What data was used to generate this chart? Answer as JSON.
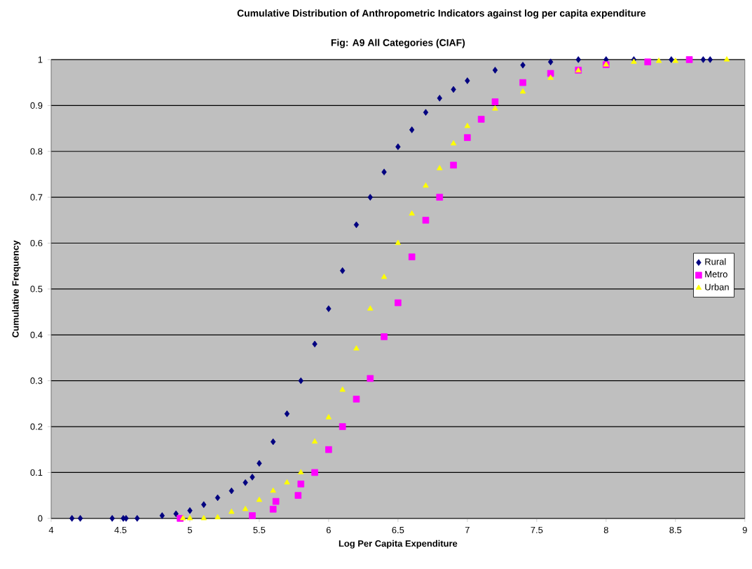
{
  "chart_data": {
    "type": "scatter",
    "title": "Cumulative Distribution of Anthropometric Indicators against log per capita expenditure",
    "subtitle": "Fig: A9 All Categories (CIAF)",
    "xlabel": "Log Per Capita Expenditure",
    "ylabel": "Cumulative Frequency",
    "xlim": [
      4,
      9
    ],
    "ylim": [
      0,
      1
    ],
    "xticks": [
      4,
      4.5,
      5,
      5.5,
      6,
      6.5,
      7,
      7.5,
      8,
      8.5,
      9
    ],
    "yticks": [
      0,
      0.1,
      0.2,
      0.3,
      0.4,
      0.5,
      0.6,
      0.7,
      0.8,
      0.9,
      1
    ],
    "grid": "y",
    "legend": "right",
    "series": [
      {
        "name": "Rural",
        "color": "#000080",
        "marker": "diamond",
        "x": [
          4.15,
          4.21,
          4.44,
          4.52,
          4.54,
          4.62,
          4.8,
          4.9,
          5.0,
          5.1,
          5.2,
          5.3,
          5.4,
          5.45,
          5.5,
          5.6,
          5.7,
          5.8,
          5.9,
          6.0,
          6.1,
          6.2,
          6.3,
          6.4,
          6.5,
          6.6,
          6.7,
          6.8,
          6.9,
          7.0,
          7.2,
          7.4,
          7.6,
          7.8,
          8.0,
          8.2,
          8.47,
          8.7,
          8.75
        ],
        "values": [
          0,
          0,
          0,
          0,
          0,
          0,
          0.006,
          0.01,
          0.017,
          0.03,
          0.045,
          0.06,
          0.078,
          0.09,
          0.12,
          0.167,
          0.228,
          0.3,
          0.38,
          0.457,
          0.54,
          0.64,
          0.7,
          0.755,
          0.81,
          0.847,
          0.885,
          0.916,
          0.935,
          0.954,
          0.977,
          0.988,
          0.995,
          1,
          1,
          1,
          1,
          1,
          1
        ]
      },
      {
        "name": "Metro",
        "color": "#ff00ff",
        "marker": "square",
        "x": [
          4.93,
          5.45,
          5.6,
          5.62,
          5.78,
          5.8,
          5.9,
          6.0,
          6.1,
          6.2,
          6.3,
          6.4,
          6.5,
          6.6,
          6.7,
          6.8,
          6.9,
          7.0,
          7.1,
          7.2,
          7.4,
          7.6,
          7.8,
          8.0,
          8.3,
          8.6
        ],
        "values": [
          0,
          0.006,
          0.02,
          0.037,
          0.05,
          0.075,
          0.1,
          0.15,
          0.2,
          0.26,
          0.305,
          0.396,
          0.47,
          0.57,
          0.65,
          0.7,
          0.77,
          0.83,
          0.87,
          0.908,
          0.95,
          0.97,
          0.977,
          0.989,
          0.995,
          1
        ]
      },
      {
        "name": "Urban",
        "color": "#ffff00",
        "marker": "triangle",
        "x": [
          4.95,
          5.0,
          5.1,
          5.2,
          5.3,
          5.4,
          5.5,
          5.6,
          5.7,
          5.8,
          5.9,
          6.0,
          6.1,
          6.2,
          6.3,
          6.4,
          6.5,
          6.6,
          6.7,
          6.8,
          6.9,
          7.0,
          7.2,
          7.4,
          7.6,
          7.8,
          8.0,
          8.2,
          8.38,
          8.5,
          8.87
        ],
        "values": [
          0,
          0,
          0,
          0.002,
          0.014,
          0.02,
          0.04,
          0.06,
          0.078,
          0.1,
          0.167,
          0.22,
          0.28,
          0.37,
          0.457,
          0.526,
          0.6,
          0.664,
          0.725,
          0.763,
          0.817,
          0.855,
          0.893,
          0.93,
          0.96,
          0.976,
          0.989,
          0.995,
          0.997,
          0.997,
          1
        ]
      }
    ]
  }
}
